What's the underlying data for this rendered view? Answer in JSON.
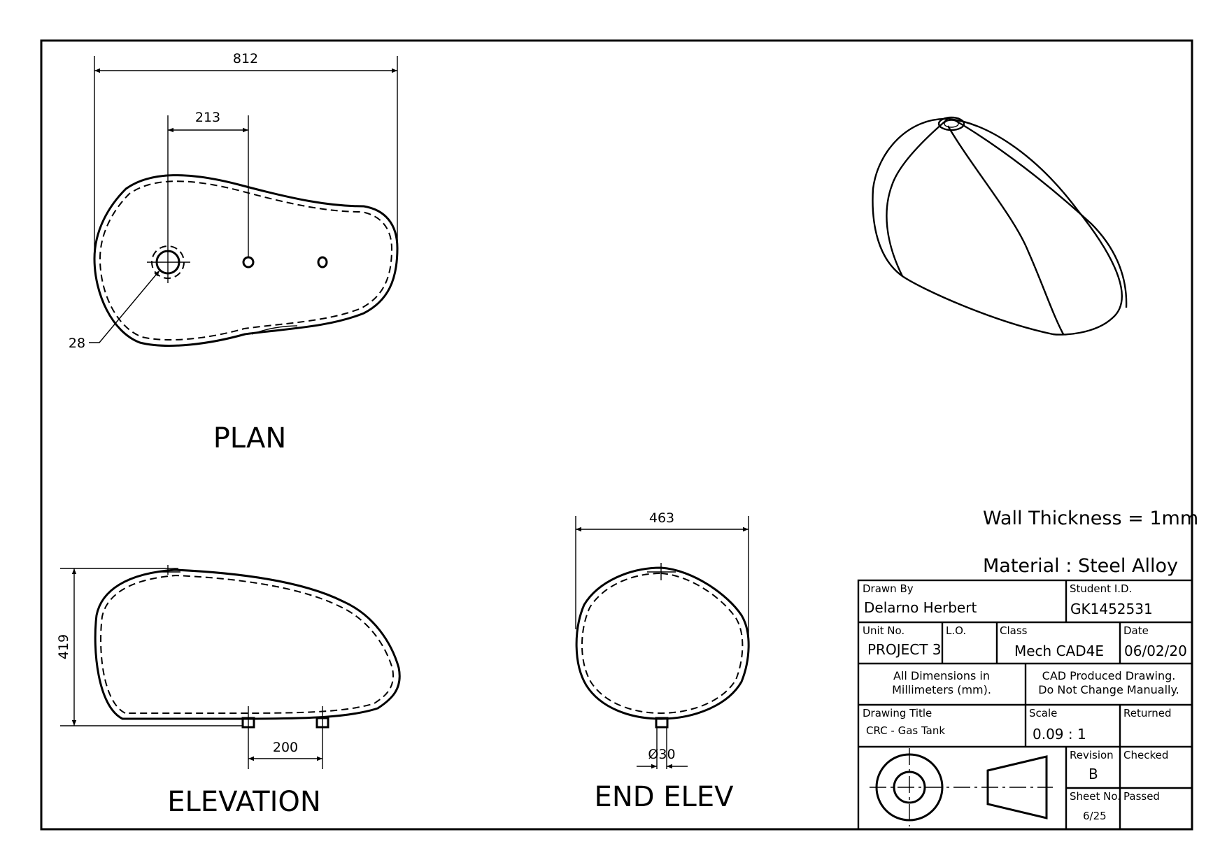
{
  "views": {
    "plan": "PLAN",
    "elevation": "ELEVATION",
    "end_elev": "END ELEV"
  },
  "dimensions": {
    "plan_length": "812",
    "plan_hole_spacing": "213",
    "plan_filler_dia": "28",
    "elevation_height": "419",
    "elevation_tab_spacing": "200",
    "end_width": "463",
    "end_tab_dia": "Ø30"
  },
  "notes": {
    "wall_thickness": "Wall Thickness = 1mm",
    "material": "Material : Steel Alloy"
  },
  "title_block": {
    "drawn_by_label": "Drawn By",
    "drawn_by": "Delarno Herbert",
    "student_id_label": "Student I.D.",
    "student_id": "GK1452531",
    "unit_no_label": "Unit No.",
    "unit_no": "PROJECT 3",
    "lo_label": "L.O.",
    "class_label": "Class",
    "class": "Mech CAD4E",
    "date_label": "Date",
    "date": "06/02/20",
    "dims_note_1": "All Dimensions in",
    "dims_note_2": "Millimeters (mm).",
    "cad_note_1": "CAD Produced Drawing.",
    "cad_note_2": "Do Not Change Manually.",
    "title_label": "Drawing Title",
    "title": "CRC - Gas Tank",
    "scale_label": "Scale",
    "scale": "0.09 : 1",
    "returned_label": "Returned",
    "revision_label": "Revision",
    "revision": "B",
    "checked_label": "Checked",
    "sheet_no_label": "Sheet No.",
    "sheet_no": "6/25",
    "passed_label": "Passed"
  }
}
